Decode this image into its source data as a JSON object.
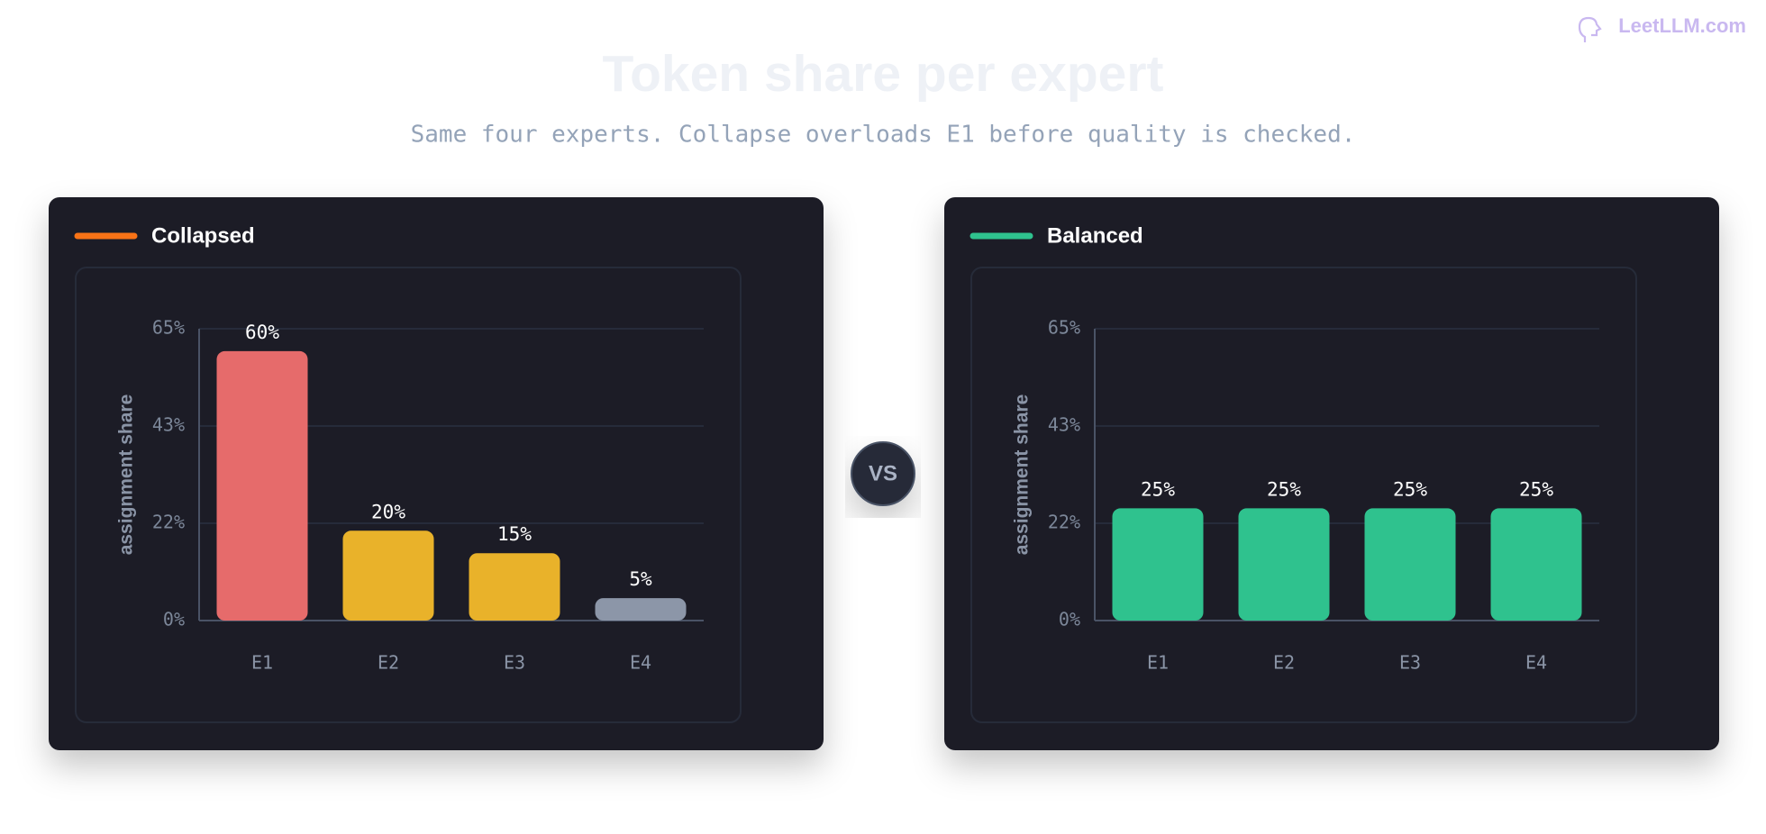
{
  "brand": "LeetLLM.com",
  "title": "Token share per expert",
  "subtitle": "Same four experts. Collapse overloads E1 before quality is checked.",
  "vs_label": "VS",
  "chart_data": [
    {
      "type": "bar",
      "legend": "Collapsed",
      "legend_color": "#f97316",
      "ylabel": "assignment share",
      "categories": [
        "E1",
        "E2",
        "E3",
        "E4"
      ],
      "values": [
        60,
        20,
        15,
        5
      ],
      "value_labels": [
        "60%",
        "20%",
        "15%",
        "5%"
      ],
      "colors": [
        "#e66b6b",
        "#e9b22a",
        "#e9b22a",
        "#8c96a8"
      ],
      "ylim": [
        0,
        65
      ],
      "yticks": [
        {
          "value": 0,
          "label": "0%"
        },
        {
          "value": 21.67,
          "label": "22%"
        },
        {
          "value": 43.33,
          "label": "43%"
        },
        {
          "value": 65,
          "label": "65%"
        }
      ],
      "grid": true
    },
    {
      "type": "bar",
      "legend": "Balanced",
      "legend_color": "#2fc28e",
      "ylabel": "assignment share",
      "categories": [
        "E1",
        "E2",
        "E3",
        "E4"
      ],
      "values": [
        25,
        25,
        25,
        25
      ],
      "value_labels": [
        "25%",
        "25%",
        "25%",
        "25%"
      ],
      "colors": [
        "#2fc28e",
        "#2fc28e",
        "#2fc28e",
        "#2fc28e"
      ],
      "ylim": [
        0,
        65
      ],
      "yticks": [
        {
          "value": 0,
          "label": "0%"
        },
        {
          "value": 21.67,
          "label": "22%"
        },
        {
          "value": 43.33,
          "label": "43%"
        },
        {
          "value": 65,
          "label": "65%"
        }
      ],
      "grid": true
    }
  ]
}
